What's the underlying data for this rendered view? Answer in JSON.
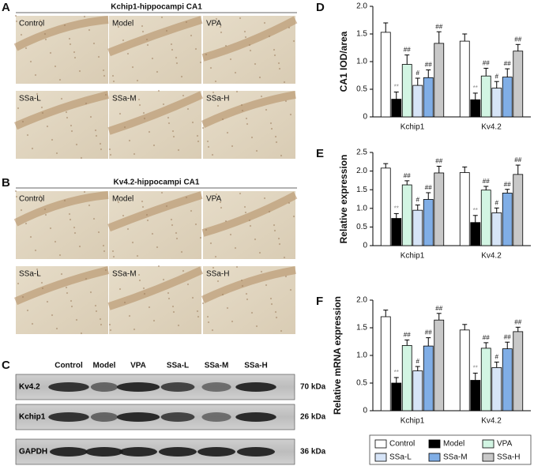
{
  "figure_a": {
    "panel": "A",
    "title": "Kchip1-hippocampi CA1",
    "images": [
      "Control",
      "Model",
      "VPA",
      "SSa-L",
      "SSa-M",
      "SSa-H"
    ]
  },
  "figure_b": {
    "panel": "B",
    "title": "Kv4.2-hippocampi CA1",
    "images": [
      "Control",
      "Model",
      "VPA",
      "SSa-L",
      "SSa-M",
      "SSa-H"
    ]
  },
  "figure_c": {
    "panel": "C",
    "lanes": [
      "Control",
      "Model",
      "VPA",
      "SSa-L",
      "SSa-M",
      "SSa-H"
    ],
    "rows": [
      {
        "name": "Kv4.2",
        "size": "70 kDa"
      },
      {
        "name": "Kchip1",
        "size": "26 kDa"
      },
      {
        "name": "GAPDH",
        "size": "36 kDa"
      }
    ]
  },
  "chart_data": [
    {
      "type": "bar",
      "panel": "D",
      "y_label": "CA1 IOD/area",
      "categories": [
        "Kchip1",
        "Kv4.2"
      ],
      "ylim": [
        0,
        2
      ],
      "yticks": [
        0,
        0.5,
        {
          "value": 1,
          "label": "1.0"
        },
        1.5,
        {
          "value": 2,
          "label": "2.0"
        }
      ],
      "legend": false,
      "series": [
        {
          "name": "Control",
          "color": "#ffffff",
          "values": [
            1.53,
            1.37
          ],
          "errors": [
            0.17,
            0.13
          ]
        },
        {
          "name": "Model",
          "color": "#000000",
          "values": [
            0.32,
            0.31
          ],
          "errors": [
            0.13,
            0.12
          ],
          "significance": [
            "**",
            "**"
          ]
        },
        {
          "name": "VPA",
          "color": "#d2f5e3",
          "values": [
            0.95,
            0.74
          ],
          "errors": [
            0.17,
            0.14
          ],
          "significance": [
            "##",
            "##"
          ]
        },
        {
          "name": "SSa-L",
          "color": "#d6e4f7",
          "values": [
            0.57,
            0.52
          ],
          "errors": [
            0.13,
            0.12
          ],
          "significance": [
            "#",
            "#"
          ]
        },
        {
          "name": "SSa-M",
          "color": "#80aee6",
          "values": [
            0.71,
            0.72
          ],
          "errors": [
            0.14,
            0.15
          ],
          "significance": [
            "##",
            "##"
          ]
        },
        {
          "name": "SSa-H",
          "color": "#c8c8c8",
          "values": [
            1.33,
            1.19
          ],
          "errors": [
            0.21,
            0.12
          ],
          "significance": [
            "##",
            "##"
          ]
        }
      ]
    },
    {
      "type": "bar",
      "panel": "E",
      "y_label": "Relative expression",
      "categories": [
        "Kchip1",
        "Kv4.2"
      ],
      "ylim": [
        0,
        2.5
      ],
      "yticks": [
        0,
        0.5,
        {
          "value": 1,
          "label": "1.0"
        },
        1.5,
        {
          "value": 2,
          "label": "2.0"
        },
        2.5
      ],
      "legend": false,
      "series": [
        {
          "name": "Control",
          "color": "#ffffff",
          "values": [
            2.08,
            1.96
          ],
          "errors": [
            0.12,
            0.15
          ]
        },
        {
          "name": "Model",
          "color": "#000000",
          "values": [
            0.73,
            0.62
          ],
          "errors": [
            0.13,
            0.19
          ],
          "significance": [
            "**",
            "**"
          ]
        },
        {
          "name": "VPA",
          "color": "#d2f5e3",
          "values": [
            1.63,
            1.49
          ],
          "errors": [
            0.11,
            0.1
          ],
          "significance": [
            "##",
            "##"
          ]
        },
        {
          "name": "SSa-L",
          "color": "#d6e4f7",
          "values": [
            0.95,
            0.88
          ],
          "errors": [
            0.14,
            0.13
          ],
          "significance": [
            "#",
            "#"
          ]
        },
        {
          "name": "SSa-M",
          "color": "#80aee6",
          "values": [
            1.24,
            1.41
          ],
          "errors": [
            0.18,
            0.1
          ],
          "significance": [
            "##",
            "##"
          ]
        },
        {
          "name": "SSa-H",
          "color": "#c8c8c8",
          "values": [
            1.95,
            1.91
          ],
          "errors": [
            0.18,
            0.25
          ],
          "significance": [
            "##",
            "##"
          ]
        }
      ]
    },
    {
      "type": "bar",
      "panel": "F",
      "y_label": "Relative mRNA expression",
      "categories": [
        "Kchip1",
        "Kv4.2"
      ],
      "ylim": [
        0,
        2
      ],
      "yticks": [
        0,
        0.5,
        {
          "value": 1,
          "label": "1.0"
        },
        1.5,
        {
          "value": 2,
          "label": "2.0"
        }
      ],
      "legend": true,
      "series": [
        {
          "name": "Control",
          "color": "#ffffff",
          "values": [
            1.7,
            1.46
          ],
          "errors": [
            0.12,
            0.1
          ]
        },
        {
          "name": "Model",
          "color": "#000000",
          "values": [
            0.5,
            0.55
          ],
          "errors": [
            0.1,
            0.13
          ],
          "significance": [
            "**",
            "**"
          ]
        },
        {
          "name": "VPA",
          "color": "#d2f5e3",
          "values": [
            1.18,
            1.13
          ],
          "errors": [
            0.1,
            0.1
          ],
          "significance": [
            "##",
            "##"
          ]
        },
        {
          "name": "SSa-L",
          "color": "#d6e4f7",
          "values": [
            0.72,
            0.78
          ],
          "errors": [
            0.08,
            0.1
          ],
          "significance": [
            "#",
            "#"
          ]
        },
        {
          "name": "SSa-M",
          "color": "#80aee6",
          "values": [
            1.17,
            1.12
          ],
          "errors": [
            0.15,
            0.12
          ],
          "significance": [
            "##",
            "##"
          ]
        },
        {
          "name": "SSa-H",
          "color": "#c8c8c8",
          "values": [
            1.64,
            1.43
          ],
          "errors": [
            0.12,
            0.08
          ],
          "significance": [
            "##",
            "##"
          ]
        }
      ]
    }
  ]
}
